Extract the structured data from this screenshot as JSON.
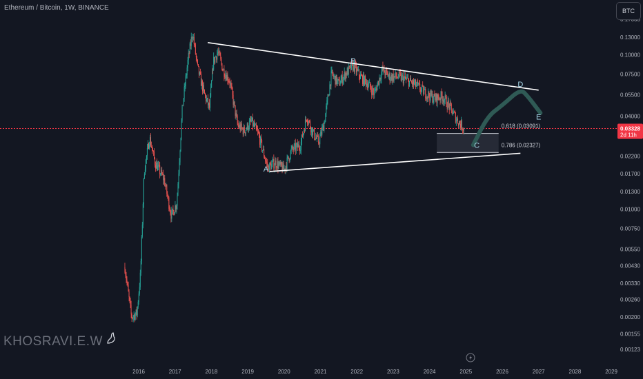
{
  "header": {
    "title": "Ethereum / Bitcoin, 1W, BINANCE",
    "currency_button": "BTC"
  },
  "watermark": "KHOSRAVI.E.W",
  "price_label": {
    "value": "0.03328",
    "countdown": "2d 11h",
    "color": "#f23645"
  },
  "colors": {
    "up": "#26a69a",
    "down": "#ef5350",
    "trendline": "#ffffff",
    "projection": "#2f5a55",
    "fib_box": "#2a2e39"
  },
  "chart_data": {
    "type": "candlestick",
    "scale": "log",
    "x_ticks": [
      "2016",
      "2017",
      "2018",
      "2019",
      "2020",
      "2021",
      "2022",
      "2023",
      "2024",
      "2025",
      "2026",
      "2027",
      "2028",
      "2029"
    ],
    "y_ticks": [
      "0.17000",
      "0.13000",
      "0.10000",
      "0.07500",
      "0.05500",
      "0.04000",
      "0.03000",
      "0.02200",
      "0.01700",
      "0.01300",
      "0.01000",
      "0.00750",
      "0.00550",
      "0.00430",
      "0.00330",
      "0.00260",
      "0.00200",
      "0.00155",
      "0.00123"
    ],
    "price_path": [
      {
        "t": 2015.62,
        "v": 0.0042
      },
      {
        "t": 2015.8,
        "v": 0.002
      },
      {
        "t": 2015.95,
        "v": 0.0021
      },
      {
        "t": 2016.05,
        "v": 0.0038
      },
      {
        "t": 2016.15,
        "v": 0.0175
      },
      {
        "t": 2016.3,
        "v": 0.029
      },
      {
        "t": 2016.45,
        "v": 0.02
      },
      {
        "t": 2016.7,
        "v": 0.0155
      },
      {
        "t": 2016.9,
        "v": 0.009
      },
      {
        "t": 2017.05,
        "v": 0.011
      },
      {
        "t": 2017.2,
        "v": 0.045
      },
      {
        "t": 2017.35,
        "v": 0.09
      },
      {
        "t": 2017.48,
        "v": 0.14
      },
      {
        "t": 2017.62,
        "v": 0.082
      },
      {
        "t": 2017.8,
        "v": 0.056
      },
      {
        "t": 2017.95,
        "v": 0.045
      },
      {
        "t": 2018.05,
        "v": 0.09
      },
      {
        "t": 2018.18,
        "v": 0.105
      },
      {
        "t": 2018.32,
        "v": 0.08
      },
      {
        "t": 2018.5,
        "v": 0.068
      },
      {
        "t": 2018.72,
        "v": 0.035
      },
      {
        "t": 2018.9,
        "v": 0.032
      },
      {
        "t": 2019.1,
        "v": 0.037
      },
      {
        "t": 2019.3,
        "v": 0.03
      },
      {
        "t": 2019.55,
        "v": 0.0185
      },
      {
        "t": 2019.75,
        "v": 0.02
      },
      {
        "t": 2020.0,
        "v": 0.018
      },
      {
        "t": 2020.2,
        "v": 0.024
      },
      {
        "t": 2020.45,
        "v": 0.026
      },
      {
        "t": 2020.62,
        "v": 0.04
      },
      {
        "t": 2020.8,
        "v": 0.031
      },
      {
        "t": 2020.95,
        "v": 0.027
      },
      {
        "t": 2021.1,
        "v": 0.036
      },
      {
        "t": 2021.3,
        "v": 0.075
      },
      {
        "t": 2021.5,
        "v": 0.065
      },
      {
        "t": 2021.7,
        "v": 0.076
      },
      {
        "t": 2021.9,
        "v": 0.085
      },
      {
        "t": 2022.1,
        "v": 0.072
      },
      {
        "t": 2022.3,
        "v": 0.065
      },
      {
        "t": 2022.48,
        "v": 0.056
      },
      {
        "t": 2022.7,
        "v": 0.08
      },
      {
        "t": 2022.9,
        "v": 0.072
      },
      {
        "t": 2023.15,
        "v": 0.072
      },
      {
        "t": 2023.4,
        "v": 0.068
      },
      {
        "t": 2023.65,
        "v": 0.063
      },
      {
        "t": 2023.9,
        "v": 0.056
      },
      {
        "t": 2024.15,
        "v": 0.052
      },
      {
        "t": 2024.35,
        "v": 0.054
      },
      {
        "t": 2024.55,
        "v": 0.046
      },
      {
        "t": 2024.75,
        "v": 0.038
      },
      {
        "t": 2024.95,
        "v": 0.0333
      }
    ],
    "annotations": [
      {
        "label": "A",
        "t": 2019.5,
        "v": 0.0175
      },
      {
        "label": "B",
        "t": 2021.9,
        "v": 0.088
      },
      {
        "label": "C",
        "t": 2025.3,
        "v": 0.025
      },
      {
        "label": "D",
        "t": 2026.5,
        "v": 0.062
      },
      {
        "label": "E",
        "t": 2027.0,
        "v": 0.038
      }
    ],
    "trendlines": [
      {
        "from": {
          "t": 2017.9,
          "v": 0.12
        },
        "to": {
          "t": 2027.0,
          "v": 0.059
        }
      },
      {
        "from": {
          "t": 2019.6,
          "v": 0.0175
        },
        "to": {
          "t": 2026.5,
          "v": 0.023
        }
      }
    ],
    "projection_path": [
      {
        "t": 2025.2,
        "v": 0.026
      },
      {
        "t": 2025.6,
        "v": 0.04
      },
      {
        "t": 2026.0,
        "v": 0.047
      },
      {
        "t": 2026.5,
        "v": 0.06
      },
      {
        "t": 2026.7,
        "v": 0.054
      },
      {
        "t": 2027.05,
        "v": 0.042
      }
    ],
    "fib_levels": [
      {
        "label": "0.618 (0.03091)",
        "value": 0.03091
      },
      {
        "label": "0.786 (0.02327)",
        "value": 0.02327
      }
    ],
    "fib_range": {
      "t_start": 2024.2,
      "t_end": 2025.9
    },
    "last_price": 0.03328
  }
}
